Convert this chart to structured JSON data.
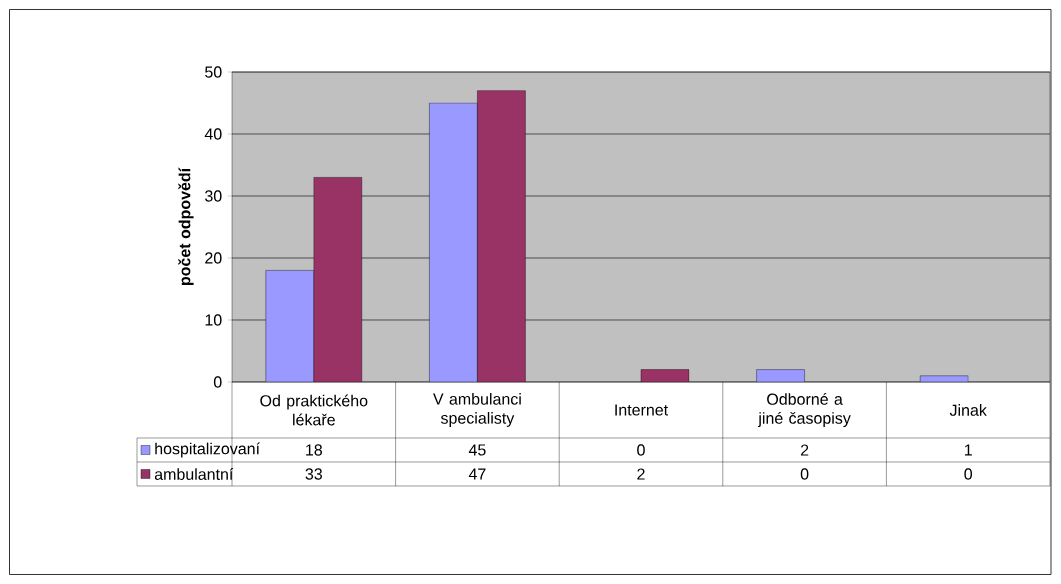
{
  "chart_data": {
    "type": "bar",
    "ylabel": "počet odpovědí",
    "categories": [
      "Od praktického lékaře",
      "V ambulanci specialisty",
      "Internet",
      "Odborné a jiné časopisy",
      "Jinak"
    ],
    "series": [
      {
        "name": "hospitalizovaní",
        "color": "#9999ff",
        "values": [
          18,
          45,
          0,
          2,
          1
        ]
      },
      {
        "name": "ambulantní",
        "color": "#993366",
        "values": [
          33,
          47,
          2,
          0,
          0
        ]
      }
    ],
    "ylim": [
      0,
      50
    ],
    "yticks": [
      0,
      10,
      20,
      30,
      40,
      50
    ],
    "grid": "y",
    "data_labels": true,
    "legend": "bottom"
  }
}
